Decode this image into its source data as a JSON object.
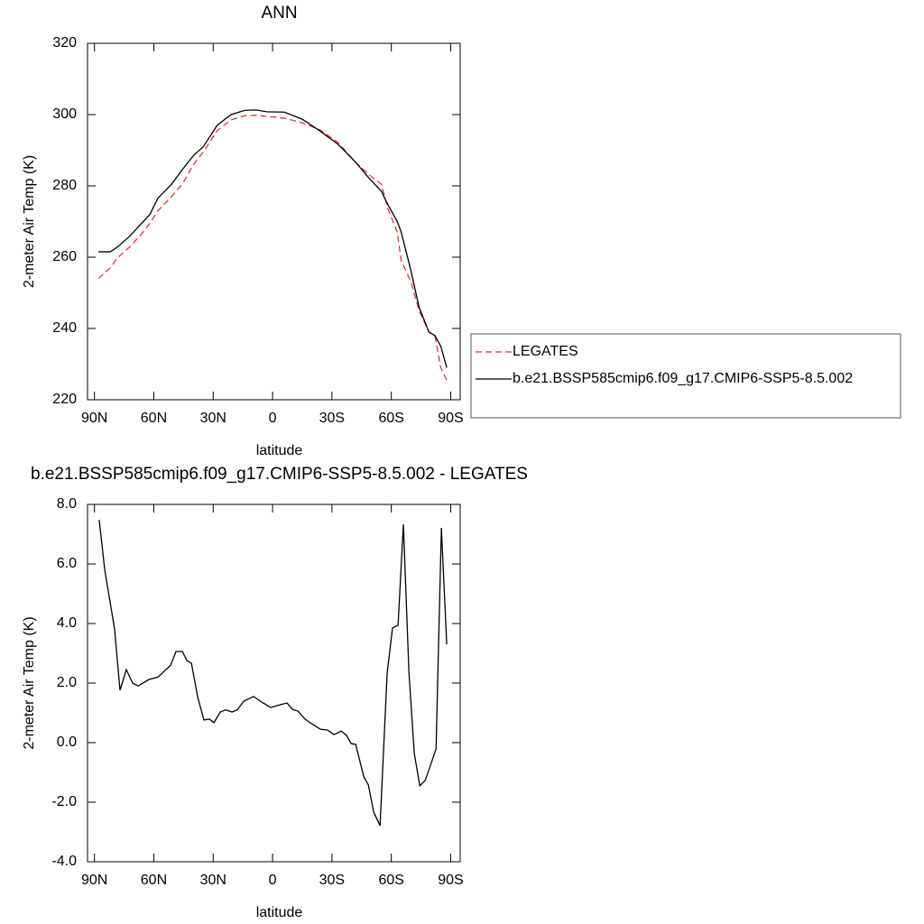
{
  "chart_data": [
    {
      "type": "line",
      "title": "ANN",
      "xlabel": "latitude",
      "ylabel": "2-meter Air Temp (K)",
      "x": [
        88,
        82,
        78,
        72,
        67,
        62,
        58,
        51,
        45,
        40,
        35,
        28,
        21,
        14,
        8,
        3,
        -6,
        -15,
        -24,
        -33,
        -42,
        -49,
        -55,
        -58,
        -63,
        -65,
        -70,
        -74,
        -79,
        -82,
        -85,
        -88
      ],
      "series": [
        {
          "name": "LEGATES",
          "color": "#e8303a",
          "dash": true,
          "values": [
            254,
            257,
            260,
            263,
            266,
            269.5,
            273,
            277,
            281,
            286,
            289.5,
            295.5,
            298.5,
            299.7,
            299.8,
            299.5,
            299,
            297.7,
            295.7,
            292.2,
            286.6,
            283,
            280.5,
            274,
            267,
            259,
            253,
            245,
            239,
            238,
            229,
            225.5
          ]
        },
        {
          "name": "b.e21.BSSP585cmip6.f09_g17.CMIP6-SSP5-8.5.002",
          "color": "#000000",
          "dash": false,
          "values": [
            261.5,
            261.5,
            263,
            266,
            269,
            272,
            276.5,
            280.5,
            285,
            288.5,
            291,
            297,
            300,
            301.2,
            301.3,
            300.8,
            300.7,
            298.7,
            295.4,
            291.7,
            286.6,
            282,
            278.5,
            275,
            270,
            267,
            256,
            246,
            239,
            238,
            235,
            229
          ]
        }
      ],
      "xlim": [
        93.5,
        -94.8
      ],
      "ylim": [
        220,
        320
      ],
      "xticks": [
        {
          "value": 90,
          "label": "90N"
        },
        {
          "value": 60,
          "label": "60N"
        },
        {
          "value": 30,
          "label": "30N"
        },
        0,
        {
          "value": -30,
          "label": "30S"
        },
        {
          "value": -60,
          "label": "60S"
        },
        {
          "value": -90,
          "label": "90S"
        }
      ],
      "yticks": [
        220,
        240,
        260,
        280,
        300,
        320
      ],
      "legend": "outside-right"
    },
    {
      "type": "line",
      "title": "b.e21.BSSP585cmip6.f09_g17.CMIP6-SSP5-8.5.002 - LEGATES",
      "xlabel": "latitude",
      "ylabel": "2-meter Air Temp (K)",
      "x": [
        87.6,
        84.8,
        79.8,
        77.1,
        73.9,
        70.7,
        68.0,
        62.5,
        57.9,
        54.7,
        51.5,
        48.8,
        45.6,
        43.3,
        41.0,
        37.8,
        34.7,
        31.9,
        29.6,
        26.4,
        23.7,
        20.5,
        17.8,
        14.6,
        9.6,
        5.5,
        0.9,
        -3.6,
        -7.3,
        -10.0,
        -12.8,
        -16.4,
        -21.0,
        -24.2,
        -27.8,
        -31.0,
        -34.7,
        -37.4,
        -39.7,
        -42.0,
        -46.1,
        -48.4,
        -51.1,
        -54.3,
        -57.9,
        -60.6,
        -63.4,
        -66.1,
        -68.9,
        -71.6,
        -74.4,
        -77.1,
        -79.8,
        -82.6,
        -85.3,
        -88.0
      ],
      "color": "#000000",
      "values": [
        7.48,
        5.8,
        3.8,
        1.76,
        2.45,
        2.0,
        1.9,
        2.12,
        2.2,
        2.4,
        2.6,
        3.06,
        3.06,
        2.76,
        2.67,
        1.52,
        0.76,
        0.79,
        0.67,
        1.03,
        1.1,
        1.03,
        1.1,
        1.39,
        1.55,
        1.36,
        1.18,
        1.27,
        1.33,
        1.12,
        1.06,
        0.79,
        0.58,
        0.45,
        0.42,
        0.27,
        0.39,
        0.24,
        -0.03,
        -0.06,
        -1.15,
        -1.42,
        -2.33,
        -2.79,
        2.33,
        3.85,
        3.94,
        7.33,
        2.36,
        -0.36,
        -1.45,
        -1.27,
        -0.76,
        -0.21,
        7.21,
        3.3
      ],
      "xlim": [
        93.5,
        -94.8
      ],
      "ylim": [
        -4,
        8
      ],
      "xticks": [
        {
          "value": 90,
          "label": "90N"
        },
        {
          "value": 60,
          "label": "60N"
        },
        {
          "value": 30,
          "label": "30N"
        },
        0,
        {
          "value": -30,
          "label": "30S"
        },
        {
          "value": -60,
          "label": "60S"
        },
        {
          "value": -90,
          "label": "90S"
        }
      ],
      "yticks": [
        {
          "value": -4,
          "label": "-4.0"
        },
        {
          "value": -2,
          "label": "-2.0"
        },
        {
          "value": 0,
          "label": "0.0"
        },
        {
          "value": 2,
          "label": "2.0"
        },
        {
          "value": 4,
          "label": "4.0"
        },
        {
          "value": 6,
          "label": "6.0"
        },
        {
          "value": 8,
          "label": "8.0"
        }
      ]
    }
  ]
}
